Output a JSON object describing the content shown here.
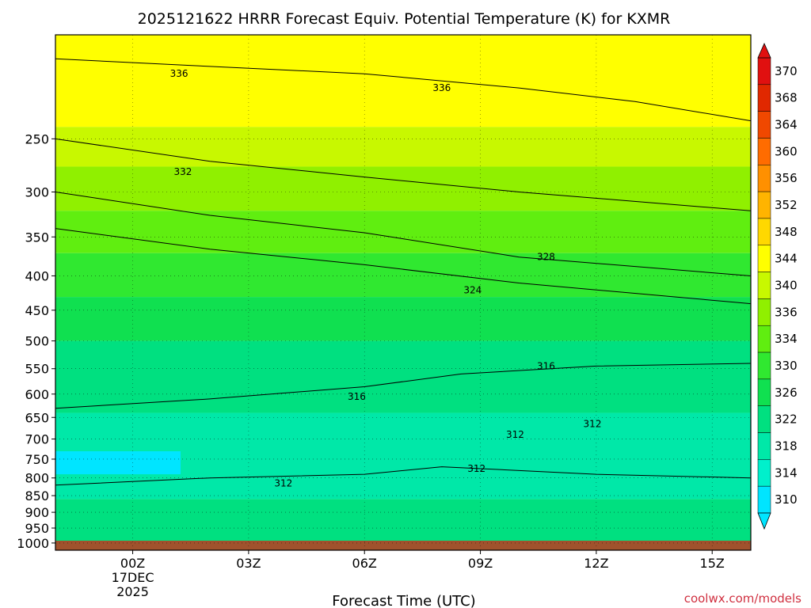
{
  "chart_data": {
    "type": "heatmap",
    "subtype": "filled-contour time-height cross section",
    "title": "2025121622 HRRR Forecast Equiv. Potential Temperature (K) for KXMR",
    "xlabel": "Forecast Time (UTC)",
    "ylabel": "",
    "x_axis": {
      "unit": "UTC",
      "range_hours": [
        -2,
        16
      ],
      "ticks": [
        {
          "hours": 0,
          "label": "00Z",
          "sublabels": [
            "17DEC",
            "2025"
          ]
        },
        {
          "hours": 3,
          "label": "03Z",
          "sublabels": []
        },
        {
          "hours": 6,
          "label": "06Z",
          "sublabels": []
        },
        {
          "hours": 9,
          "label": "09Z",
          "sublabels": []
        },
        {
          "hours": 12,
          "label": "12Z",
          "sublabels": []
        },
        {
          "hours": 15,
          "label": "15Z",
          "sublabels": []
        }
      ]
    },
    "y_axis": {
      "unit": "hPa",
      "scale": "log",
      "range": [
        1025,
        175
      ],
      "ticks": [
        250,
        300,
        350,
        400,
        450,
        500,
        550,
        600,
        650,
        700,
        750,
        800,
        850,
        900,
        950,
        1000
      ]
    },
    "grid": "dotted",
    "colorbar": {
      "placement": "right",
      "levels": [
        310,
        314,
        318,
        322,
        326,
        330,
        334,
        336,
        340,
        344,
        348,
        352,
        356,
        360,
        364,
        368,
        370
      ],
      "labels": [
        "370",
        "368",
        "364",
        "360",
        "356",
        "352",
        "348",
        "344",
        "340",
        "336",
        "334",
        "330",
        "326",
        "322",
        "318",
        "314",
        "310"
      ],
      "colors": [
        "#00e5ff",
        "#00f0cc",
        "#00e8a8",
        "#00e080",
        "#10e050",
        "#30e830",
        "#60ee10",
        "#90f000",
        "#c8f800",
        "#ffff00",
        "#ffd800",
        "#ffb400",
        "#ff9000",
        "#ff6c00",
        "#f04800",
        "#e02800",
        "#e01010"
      ]
    },
    "fill_bands": [
      {
        "pressure_hPa": [
          175,
          240
        ],
        "theta_e_K": 340,
        "color": "#ffff00"
      },
      {
        "pressure_hPa": [
          240,
          275
        ],
        "theta_e_K": 336,
        "color": "#c8f800"
      },
      {
        "pressure_hPa": [
          275,
          320
        ],
        "theta_e_K": 332,
        "color": "#90f000"
      },
      {
        "pressure_hPa": [
          320,
          370
        ],
        "theta_e_K": 328,
        "color": "#60ee10"
      },
      {
        "pressure_hPa": [
          370,
          430
        ],
        "theta_e_K": 326,
        "color": "#30e830"
      },
      {
        "pressure_hPa": [
          430,
          500
        ],
        "theta_e_K": 322,
        "color": "#10e050"
      },
      {
        "pressure_hPa": [
          500,
          640
        ],
        "theta_e_K": 318,
        "color": "#00e080"
      },
      {
        "pressure_hPa": [
          640,
          860
        ],
        "theta_e_K": 314,
        "color": "#00e8a8"
      },
      {
        "pressure_hPa": [
          860,
          1025
        ],
        "theta_e_K": 318,
        "color": "#00e080"
      }
    ],
    "cold_pocket": {
      "pressure_hPa": [
        730,
        790
      ],
      "theta_e_K": 310,
      "color": "#00e5ff"
    },
    "contours": [
      {
        "level": 336,
        "label": "336",
        "points": [
          [
            -2,
            190
          ],
          [
            2,
            195
          ],
          [
            6,
            200
          ],
          [
            10,
            210
          ],
          [
            13,
            220
          ],
          [
            16,
            235
          ]
        ]
      },
      {
        "level": 332,
        "label": "332",
        "points": [
          [
            -2,
            250
          ],
          [
            2,
            270
          ],
          [
            6,
            285
          ],
          [
            10,
            300
          ],
          [
            16,
            320
          ]
        ]
      },
      {
        "level": 328,
        "label": "328",
        "points": [
          [
            -2,
            300
          ],
          [
            2,
            325
          ],
          [
            6,
            345
          ],
          [
            10,
            375
          ],
          [
            16,
            400
          ]
        ]
      },
      {
        "level": 324,
        "label": "324",
        "points": [
          [
            -2,
            340
          ],
          [
            2,
            365
          ],
          [
            6,
            385
          ],
          [
            10,
            410
          ],
          [
            16,
            440
          ]
        ]
      },
      {
        "level": 316,
        "label": "316",
        "points": [
          [
            -2,
            630
          ],
          [
            2,
            610
          ],
          [
            6,
            585
          ],
          [
            8.5,
            560
          ],
          [
            12,
            545
          ],
          [
            16,
            540
          ]
        ]
      },
      {
        "level": 312,
        "label": "312",
        "points": [
          [
            -2,
            820
          ],
          [
            2,
            800
          ],
          [
            6,
            790
          ],
          [
            8,
            770
          ],
          [
            12,
            790
          ],
          [
            16,
            800
          ]
        ]
      }
    ],
    "contour_labels": [
      {
        "text": "336",
        "x_hours": 1.2,
        "pressure_hPa": 200
      },
      {
        "text": "336",
        "x_hours": 8,
        "pressure_hPa": 210
      },
      {
        "text": "332",
        "x_hours": 1.3,
        "pressure_hPa": 280
      },
      {
        "text": "328",
        "x_hours": 10.7,
        "pressure_hPa": 375
      },
      {
        "text": "324",
        "x_hours": 8.8,
        "pressure_hPa": 420
      },
      {
        "text": "316",
        "x_hours": 5.8,
        "pressure_hPa": 605
      },
      {
        "text": "316",
        "x_hours": 10.7,
        "pressure_hPa": 545
      },
      {
        "text": "312",
        "x_hours": 11.9,
        "pressure_hPa": 665
      },
      {
        "text": "312",
        "x_hours": 9.9,
        "pressure_hPa": 690
      },
      {
        "text": "312",
        "x_hours": 3.9,
        "pressure_hPa": 815
      },
      {
        "text": "312",
        "x_hours": 8.9,
        "pressure_hPa": 775
      }
    ]
  },
  "credit": "coolwx.com/models"
}
